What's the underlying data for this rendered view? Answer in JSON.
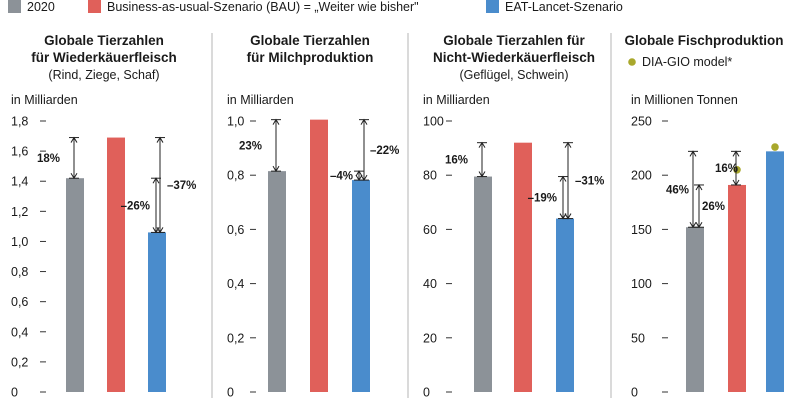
{
  "legend": {
    "items": [
      {
        "label": "2020",
        "color": "#8c9298"
      },
      {
        "label": "Business-as-usual-Szenario (BAU) = „Weiter wie bisher\"",
        "color": "#e0605a"
      },
      {
        "label": "EAT-Lancet-Szenario",
        "color": "#4a8ccc"
      }
    ],
    "marker": {
      "label": "DIA-GIO model*",
      "color": "#a9a82c"
    }
  },
  "chart_data": [
    {
      "type": "bar",
      "title": "Globale Tierzahlen für Wiederkäuerfleisch",
      "title_lines": [
        "Globale Tierzahlen",
        "für Wiederkäuerfleisch"
      ],
      "subtitle": "(Rind, Ziege, Schaf)",
      "ylabel": "in Milliarden",
      "ylim": [
        0,
        1.8
      ],
      "yticks": [
        "0",
        "0,2",
        "0,4",
        "0,6",
        "0,8",
        "1,0",
        "1,2",
        "1,4",
        "1,6",
        "1,8"
      ],
      "categories": [
        "2020",
        "Business-as-usual-Szenario (BAU)",
        "EAT-Lancet-Szenario"
      ],
      "values": [
        1.42,
        1.69,
        1.06
      ],
      "annotations": [
        {
          "label": "18%",
          "from": 1.42,
          "to": 1.69
        },
        {
          "label": "–26%",
          "from": 1.42,
          "to": 1.06
        },
        {
          "label": "–37%",
          "from": 1.69,
          "to": 1.06
        }
      ]
    },
    {
      "type": "bar",
      "title": "Globale Tierzahlen für Milchproduktion",
      "title_lines": [
        "Globale Tierzahlen",
        "für Milchproduktion"
      ],
      "subtitle": "",
      "ylabel": "in Milliarden",
      "ylim": [
        0,
        1.0
      ],
      "yticks": [
        "0",
        "0,2",
        "0,4",
        "0,6",
        "0,8",
        "1,0"
      ],
      "categories": [
        "2020",
        "Business-as-usual-Szenario (BAU)",
        "EAT-Lancet-Szenario"
      ],
      "values": [
        0.815,
        1.005,
        0.782
      ],
      "annotations": [
        {
          "label": "23%",
          "from": 0.815,
          "to": 1.005
        },
        {
          "label": "–4%",
          "from": 0.815,
          "to": 0.782
        },
        {
          "label": "–22%",
          "from": 1.005,
          "to": 0.782
        }
      ]
    },
    {
      "type": "bar",
      "title": "Globale Tierzahlen für Nicht-Wiederkäuerfleisch",
      "title_lines": [
        "Globale Tierzahlen für",
        "Nicht-Wiederkäuerfleisch"
      ],
      "subtitle": "(Geflügel, Schwein)",
      "ylabel": "in Milliarden",
      "ylim": [
        0,
        100
      ],
      "yticks": [
        "0",
        "20",
        "40",
        "60",
        "80",
        "100"
      ],
      "categories": [
        "2020",
        "Business-as-usual-Szenario (BAU)",
        "EAT-Lancet-Szenario"
      ],
      "values": [
        79.5,
        92,
        64
      ],
      "annotations": [
        {
          "label": "16%",
          "from": 79.5,
          "to": 92
        },
        {
          "label": "–19%",
          "from": 79.5,
          "to": 64
        },
        {
          "label": "–31%",
          "from": 92,
          "to": 64
        }
      ]
    },
    {
      "type": "bar",
      "title": "Globale Fischproduktion",
      "title_lines": [
        "Globale Fischproduktion"
      ],
      "subtitle": "",
      "ylabel": "in Millionen Tonnen",
      "ylim": [
        0,
        250
      ],
      "yticks": [
        "0",
        "50",
        "100",
        "150",
        "200",
        "250"
      ],
      "categories": [
        "2020",
        "Business-as-usual-Szenario (BAU)",
        "EAT-Lancet-Szenario"
      ],
      "values": [
        152,
        191,
        222
      ],
      "markers": [
        {
          "series": "DIA-GIO model*",
          "category_index": 1,
          "value": 205
        },
        {
          "series": "DIA-GIO model*",
          "category_index": 2,
          "value": 226
        }
      ],
      "annotations": [
        {
          "label": "46%",
          "from": 152,
          "to": 222
        },
        {
          "label": "16%",
          "from": 191,
          "to": 222
        },
        {
          "label": "26%",
          "from": 152,
          "to": 191
        }
      ]
    }
  ]
}
